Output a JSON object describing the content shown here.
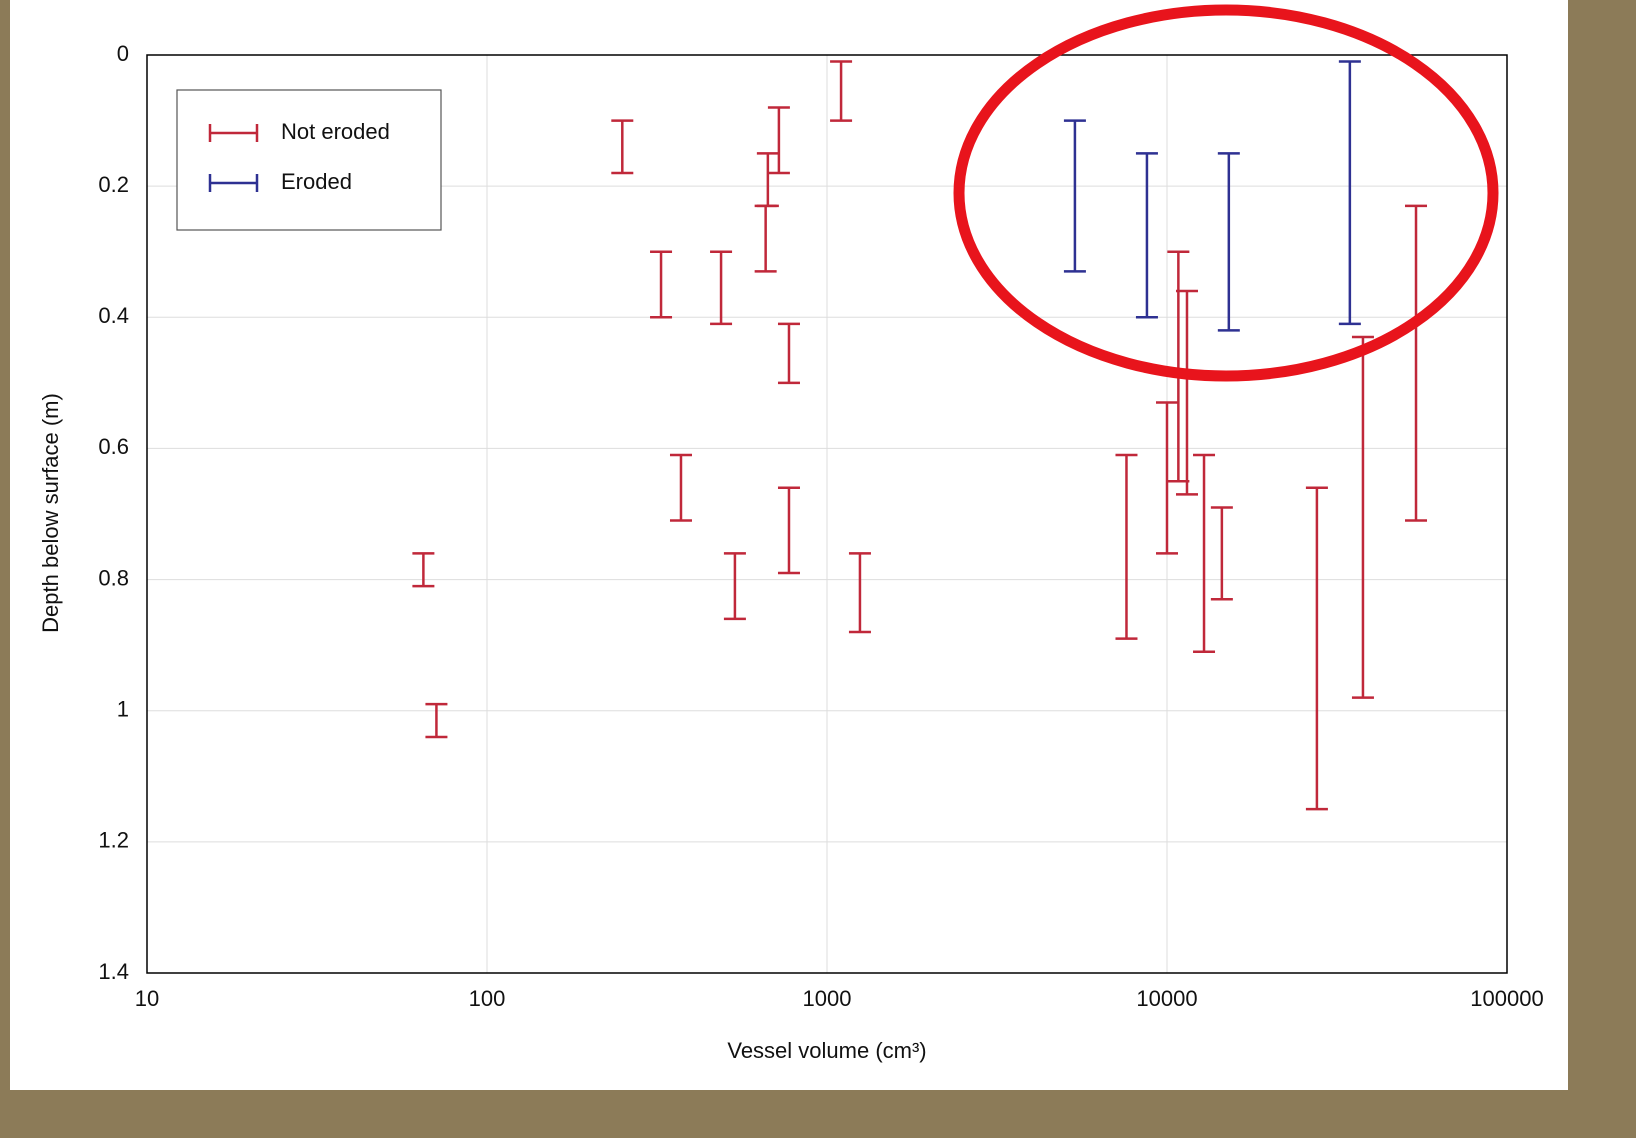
{
  "chart_data": {
    "type": "rangebar",
    "x_label": "Vessel volume (cm³)",
    "y_label": "Depth below surface (m)",
    "xlim": [
      10,
      100000
    ],
    "xticks": [
      10,
      100,
      1000,
      10000,
      100000
    ],
    "x_log": true,
    "ylim": [
      0,
      1.4
    ],
    "yticks": [
      0,
      0.2,
      0.4,
      0.6,
      0.8,
      1,
      1.2,
      1.4
    ],
    "y_inverted": true,
    "grid": true,
    "legend": "upper left",
    "series": [
      {
        "name": "Not eroded",
        "color": "#c0283a",
        "x": [
          65,
          71,
          250,
          325,
          372,
          488,
          536,
          660,
          670,
          722,
          773,
          773,
          1100,
          1250,
          7600,
          10000,
          10800,
          11450,
          12850,
          14500,
          27600,
          37700,
          54000
        ],
        "low": [
          0.76,
          0.99,
          0.1,
          0.3,
          0.61,
          0.3,
          0.76,
          0.23,
          0.15,
          0.08,
          0.41,
          0.66,
          0.01,
          0.76,
          0.61,
          0.53,
          0.3,
          0.36,
          0.61,
          0.69,
          0.66,
          0.43,
          0.23
        ],
        "high": [
          0.81,
          1.04,
          0.18,
          0.4,
          0.71,
          0.41,
          0.86,
          0.33,
          0.23,
          0.18,
          0.5,
          0.79,
          0.1,
          0.88,
          0.89,
          0.76,
          0.65,
          0.67,
          0.91,
          0.83,
          1.15,
          0.98,
          0.71
        ]
      },
      {
        "name": "Eroded",
        "color": "#2e3192",
        "x": [
          5360,
          8730,
          15200,
          34500
        ],
        "low": [
          0.1,
          0.15,
          0.15,
          0.01
        ],
        "high": [
          0.33,
          0.4,
          0.42,
          0.41
        ]
      }
    ]
  }
}
